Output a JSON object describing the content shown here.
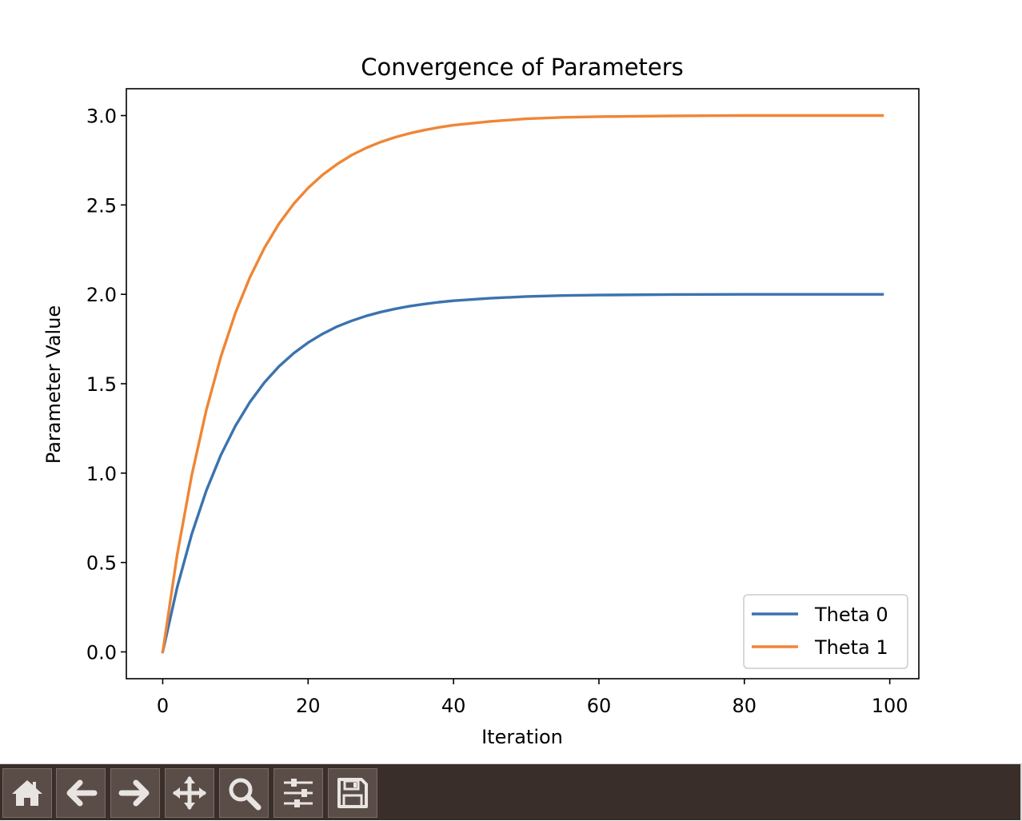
{
  "chart_data": {
    "type": "line",
    "title": "Convergence of Parameters",
    "xlabel": "Iteration",
    "ylabel": "Parameter Value",
    "xlim": [
      -5,
      104
    ],
    "ylim": [
      -0.15,
      3.15
    ],
    "xticks": [
      0,
      20,
      40,
      60,
      80,
      100
    ],
    "xtick_labels": [
      "0",
      "20",
      "40",
      "60",
      "80",
      "100"
    ],
    "yticks": [
      0.0,
      0.5,
      1.0,
      1.5,
      2.0,
      2.5,
      3.0
    ],
    "ytick_labels": [
      "0.0",
      "0.5",
      "1.0",
      "1.5",
      "2.0",
      "2.5",
      "3.0"
    ],
    "legend_position": "lower-right",
    "grid": false,
    "series": [
      {
        "name": "Theta 0",
        "color": "#3b73ae",
        "x": [
          0,
          2,
          4,
          6,
          8,
          10,
          12,
          14,
          16,
          18,
          20,
          22,
          24,
          26,
          28,
          30,
          32,
          34,
          36,
          38,
          40,
          45,
          50,
          55,
          60,
          70,
          80,
          90,
          99
        ],
        "values": [
          0.0,
          0.362,
          0.659,
          0.902,
          1.101,
          1.264,
          1.398,
          1.507,
          1.597,
          1.67,
          1.73,
          1.779,
          1.82,
          1.852,
          1.879,
          1.901,
          1.919,
          1.934,
          1.946,
          1.956,
          1.964,
          1.978,
          1.988,
          1.993,
          1.996,
          1.999,
          2.0,
          2.0,
          2.0
        ]
      },
      {
        "name": "Theta 1",
        "color": "#ef8636",
        "x": [
          0,
          2,
          4,
          6,
          8,
          10,
          12,
          14,
          16,
          18,
          20,
          22,
          24,
          26,
          28,
          30,
          32,
          34,
          36,
          38,
          40,
          45,
          50,
          55,
          60,
          70,
          80,
          90,
          99
        ],
        "values": [
          0.0,
          0.544,
          0.989,
          1.353,
          1.651,
          1.896,
          2.096,
          2.26,
          2.395,
          2.505,
          2.595,
          2.669,
          2.729,
          2.779,
          2.819,
          2.852,
          2.879,
          2.901,
          2.919,
          2.934,
          2.946,
          2.967,
          2.982,
          2.99,
          2.994,
          2.998,
          3.0,
          3.0,
          3.0
        ]
      }
    ]
  },
  "toolbar": {
    "buttons": [
      {
        "name": "home-button",
        "icon": "home-icon"
      },
      {
        "name": "back-button",
        "icon": "arrow-left-icon"
      },
      {
        "name": "forward-button",
        "icon": "arrow-right-icon"
      },
      {
        "name": "pan-button",
        "icon": "move-icon"
      },
      {
        "name": "zoom-button",
        "icon": "zoom-icon"
      },
      {
        "name": "configure-subplots-button",
        "icon": "sliders-icon"
      },
      {
        "name": "save-button",
        "icon": "save-icon"
      }
    ],
    "icon_color": "#e8e4e2"
  }
}
